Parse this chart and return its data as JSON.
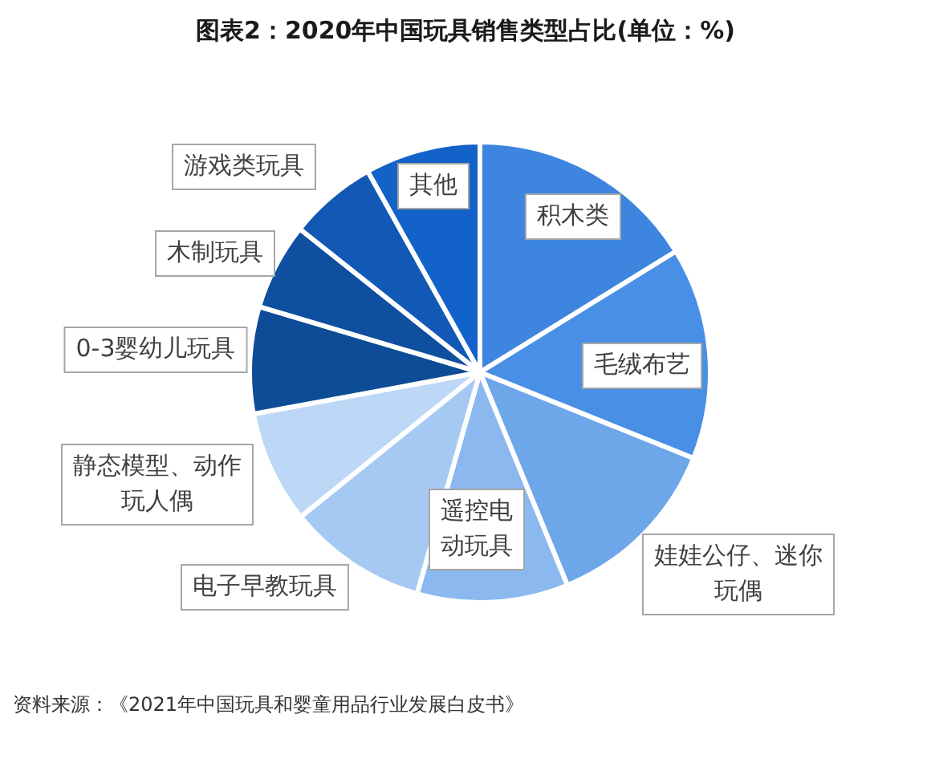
{
  "chart_data": {
    "type": "pie",
    "title": "图表2：2020年中国玩具销售类型占比(单位：%)",
    "categories": [
      "积木类",
      "毛绒布艺",
      "娃娃公仔、迷你玩偶",
      "遥控电动玩具",
      "电子早教玩具",
      "静态模型、动作玩人偶",
      "0-3婴幼儿玩具",
      "木制玩具",
      "游戏类玩具",
      "其他"
    ],
    "values": [
      16.2,
      14.9,
      12.7,
      10.6,
      9.8,
      7.9,
      7.5,
      6.1,
      6.2,
      8.1
    ],
    "colors": [
      "#3d85de",
      "#4a8fe6",
      "#6ea6ea",
      "#8ab8ef",
      "#a6c9f4",
      "#bdd7f7",
      "#0d4c97",
      "#0f4fa0",
      "#1258b5",
      "#1262c9"
    ],
    "legend": false,
    "annotations": [
      "资料来源：《2021年中国玩具和婴童用品行业发展白皮书》"
    ]
  }
}
